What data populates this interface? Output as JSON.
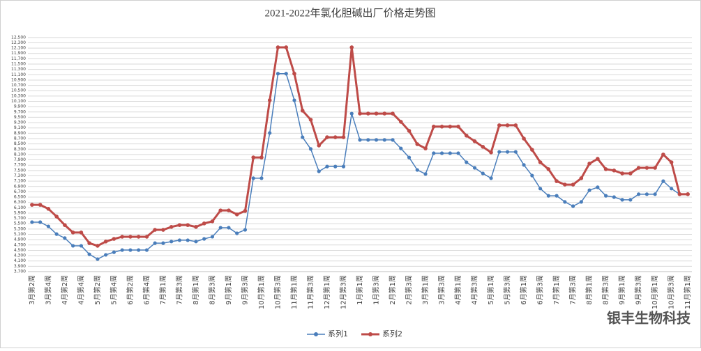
{
  "chart_data": {
    "type": "line",
    "title": "2021-2022年氯化胆碱出厂价格走势图",
    "categories": [
      "3月第2周",
      null,
      "3月第4周",
      null,
      "4月第2周",
      null,
      "4月第4周",
      null,
      "5月第2周",
      null,
      "5月第4周",
      null,
      "6月第2周",
      null,
      "6月第4周",
      null,
      "7月第1周",
      null,
      "7月第3周",
      null,
      "8月第1周",
      null,
      "8月第3周",
      null,
      "9月第1周",
      null,
      "9月第3周",
      null,
      "10月第1周",
      null,
      "10月第3周",
      null,
      "11月第1周",
      null,
      "11月第3周",
      null,
      "12月第1周",
      null,
      "12月第3周",
      null,
      "1月第1周",
      null,
      "1月第3周",
      null,
      "2月第1周",
      null,
      "2月第3周",
      null,
      "3月第1周",
      null,
      "3月第3周",
      null,
      "4月第1周",
      null,
      "4月第3周",
      null,
      "5月第1周",
      null,
      "5月第3周",
      null,
      "6月第1周",
      null,
      "6月第3周",
      null,
      "7月第1周",
      null,
      "7月第3周",
      null,
      "8月第1周",
      null,
      "8月第3周",
      null,
      "9月第1周",
      null,
      "9月第3周",
      null,
      "10月第1周",
      null,
      "10月第3周",
      null,
      "11月第1周"
    ],
    "series": [
      {
        "name": "系列1",
        "color": "#4a7ebb",
        "values": [
          5560,
          5560,
          5400,
          5110,
          4960,
          4670,
          4670,
          4350,
          4170,
          4330,
          4430,
          4510,
          4510,
          4510,
          4510,
          4770,
          4770,
          4830,
          4880,
          4880,
          4830,
          4930,
          5010,
          5350,
          5350,
          5140,
          5270,
          7210,
          7210,
          8910,
          11140,
          11140,
          10140,
          8750,
          8310,
          7470,
          7650,
          7650,
          7650,
          9640,
          8650,
          8650,
          8650,
          8650,
          8650,
          8330,
          7990,
          7520,
          7370,
          8150,
          8150,
          8150,
          8150,
          7810,
          7600,
          7390,
          7210,
          8200,
          8200,
          8200,
          7710,
          7310,
          6820,
          6550,
          6550,
          6320,
          6160,
          6320,
          6760,
          6870,
          6550,
          6500,
          6400,
          6400,
          6610,
          6610,
          6610,
          7100,
          6820,
          6610,
          6610
        ]
      },
      {
        "name": "系列2",
        "color": "#be4b48",
        "values": [
          6210,
          6210,
          6060,
          5770,
          5450,
          5170,
          5170,
          4770,
          4670,
          4830,
          4930,
          5010,
          5010,
          5010,
          5010,
          5270,
          5270,
          5380,
          5450,
          5450,
          5380,
          5510,
          5590,
          6000,
          6000,
          5850,
          5980,
          7990,
          7990,
          10140,
          12130,
          12130,
          11140,
          9750,
          9410,
          8440,
          8750,
          8750,
          8750,
          12130,
          9640,
          9640,
          9640,
          9640,
          9640,
          9330,
          8990,
          8490,
          8330,
          9150,
          9150,
          9150,
          9150,
          8810,
          8600,
          8390,
          8180,
          9200,
          9200,
          9200,
          8700,
          8280,
          7810,
          7550,
          7100,
          6970,
          6970,
          7210,
          7760,
          7940,
          7550,
          7500,
          7390,
          7390,
          7600,
          7600,
          7600,
          8100,
          7810,
          6610,
          6610
        ]
      }
    ],
    "ylim": [
      3700,
      12600
    ],
    "yticks": [
      {
        "value": 3700,
        "label": "3,700"
      },
      {
        "value": 3900,
        "label": "3,900"
      },
      {
        "value": 4100,
        "label": "4,100"
      },
      {
        "value": 4300,
        "label": "4,300"
      },
      {
        "value": 4500,
        "label": "4,500"
      },
      {
        "value": 4700,
        "label": "4,700"
      },
      {
        "value": 4900,
        "label": "4,900"
      },
      {
        "value": 5100,
        "label": "5,100"
      },
      {
        "value": 5300,
        "label": "5,300"
      },
      {
        "value": 5500,
        "label": "5,500"
      },
      {
        "value": 5700,
        "label": "5,700"
      },
      {
        "value": 5900,
        "label": "5,900"
      },
      {
        "value": 6100,
        "label": "6,100"
      },
      {
        "value": 6300,
        "label": "6,300"
      },
      {
        "value": 6500,
        "label": "6,500"
      },
      {
        "value": 6700,
        "label": "6,700"
      },
      {
        "value": 6900,
        "label": "6,900"
      },
      {
        "value": 7100,
        "label": "7,100"
      },
      {
        "value": 7300,
        "label": "7,300"
      },
      {
        "value": 7500,
        "label": "7,500"
      },
      {
        "value": 7700,
        "label": "7,700"
      },
      {
        "value": 7900,
        "label": "7,900"
      },
      {
        "value": 8100,
        "label": "8,100"
      },
      {
        "value": 8300,
        "label": "8,300"
      },
      {
        "value": 8500,
        "label": "8,500"
      },
      {
        "value": 8700,
        "label": "8,700"
      },
      {
        "value": 8900,
        "label": "8,900"
      },
      {
        "value": 9100,
        "label": "9,100"
      },
      {
        "value": 9300,
        "label": "9,300"
      },
      {
        "value": 9500,
        "label": "9,500"
      },
      {
        "value": 9700,
        "label": "9,700"
      },
      {
        "value": 9900,
        "label": "9,900"
      },
      {
        "value": 10100,
        "label": "10,100"
      },
      {
        "value": 10300,
        "label": "10,300"
      },
      {
        "value": 10500,
        "label": "10,500"
      },
      {
        "value": 10700,
        "label": "10,700"
      },
      {
        "value": 10900,
        "label": "10,900"
      },
      {
        "value": 11100,
        "label": "11,100"
      },
      {
        "value": 11300,
        "label": "11,300"
      },
      {
        "value": 11500,
        "label": "11,500"
      },
      {
        "value": 11700,
        "label": "11,700"
      },
      {
        "value": 11900,
        "label": "11,900"
      },
      {
        "value": 12100,
        "label": "12,100"
      },
      {
        "value": 12300,
        "label": "12,300"
      },
      {
        "value": 12500,
        "label": "12,500"
      }
    ],
    "grid": true,
    "legend": "bottom",
    "watermark": "银丰生物科技"
  }
}
